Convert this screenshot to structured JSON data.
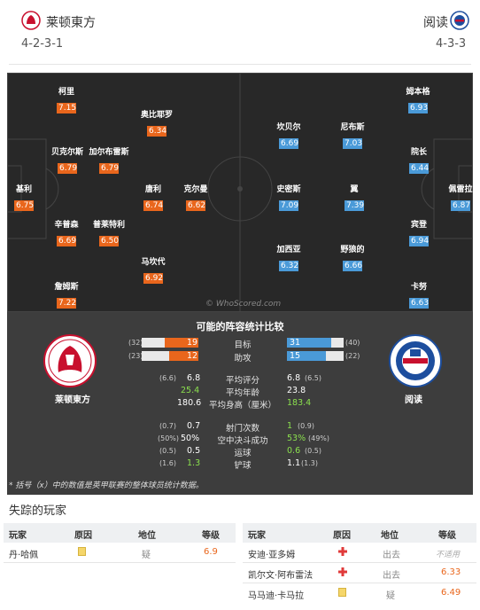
{
  "home": {
    "name": "莱顿東方",
    "formation": "4-2-3-1",
    "crest_label": "莱顿東方"
  },
  "away": {
    "name": "阅读",
    "formation": "4-3-3",
    "crest_label": "阅读"
  },
  "colors": {
    "home": "#e9661c",
    "away": "#4a9ad8",
    "pitch": "#282828",
    "positive": "#8be04e"
  },
  "pitch": {
    "home_players": [
      {
        "name": "柯里",
        "rating": "7.15"
      },
      {
        "name": "奥比耶罗",
        "rating": "6.34"
      },
      {
        "name": "贝克尔斯",
        "rating": "6.79"
      },
      {
        "name": "加尔布雷斯",
        "rating": "6.79"
      },
      {
        "name": "基利",
        "rating": "6.75"
      },
      {
        "name": "唐利",
        "rating": "6.74"
      },
      {
        "name": "克尔曼",
        "rating": "6.62"
      },
      {
        "name": "辛普森",
        "rating": "6.69"
      },
      {
        "name": "普莱特利",
        "rating": "6.50"
      },
      {
        "name": "马坎代",
        "rating": "6.92"
      },
      {
        "name": "詹姆斯",
        "rating": "7.22"
      }
    ],
    "away_players": [
      {
        "name": "姆本格",
        "rating": "6.93"
      },
      {
        "name": "坎贝尔",
        "rating": "6.69"
      },
      {
        "name": "尼布斯",
        "rating": "7.03"
      },
      {
        "name": "院长",
        "rating": "6.44"
      },
      {
        "name": "史密斯",
        "rating": "7.09"
      },
      {
        "name": "翼",
        "rating": "7.39"
      },
      {
        "name": "佩雷拉",
        "rating": "6.87"
      },
      {
        "name": "宾登",
        "rating": "6.94"
      },
      {
        "name": "加西亚",
        "rating": "6.32"
      },
      {
        "name": "野狼的",
        "rating": "6.66"
      },
      {
        "name": "卡努",
        "rating": "6.63"
      }
    ],
    "watermark": "© WhoScored.com"
  },
  "comparison": {
    "title": "可能的阵容统计比较",
    "bars": [
      {
        "label": "目标",
        "home_total": "(32)",
        "home": "19",
        "away": "31",
        "away_total": "(40)",
        "home_frac": 0.59,
        "away_frac": 0.78
      },
      {
        "label": "助攻",
        "home_total": "(23)",
        "home": "12",
        "away": "15",
        "away_total": "(22)",
        "home_frac": 0.52,
        "away_frac": 0.68
      }
    ],
    "rows1": [
      {
        "label": "平均评分",
        "home_small": "(6.6)",
        "home": "6.8",
        "home_green": false,
        "away": "6.8",
        "away_green": false,
        "away_small": "(6.5)"
      },
      {
        "label": "平均年龄",
        "home_small": "",
        "home": "25.4",
        "home_green": true,
        "away": "23.8",
        "away_green": false,
        "away_small": ""
      },
      {
        "label": "平均身高（厘米）",
        "home_small": "",
        "home": "180.6",
        "home_green": false,
        "away": "183.4",
        "away_green": true,
        "away_small": ""
      }
    ],
    "rows2": [
      {
        "label": "射门次数",
        "home_small": "(0.7)",
        "home": "0.7",
        "home_green": false,
        "away": "1",
        "away_green": true,
        "away_small": "(0.9)"
      },
      {
        "label": "空中决斗成功",
        "home_small": "(50%)",
        "home": "50%",
        "home_green": false,
        "away": "53%",
        "away_green": true,
        "away_small": "(49%)"
      },
      {
        "label": "运球",
        "home_small": "(0.5)",
        "home": "0.5",
        "home_green": false,
        "away": "0.6",
        "away_green": true,
        "away_small": "(0.5)"
      },
      {
        "label": "铲球",
        "home_small": "(1.6)",
        "home": "1.3",
        "home_green": true,
        "away": "1.1",
        "away_green": false,
        "away_small": "(1.3)"
      }
    ],
    "footnote": "* 括号（x）中的数值是英甲联赛的整体球员统计数据。"
  },
  "missing": {
    "title": "失踪的玩家",
    "headers": {
      "player": "玩家",
      "reason": "原因",
      "position": "地位",
      "rating": "等级"
    },
    "home": [
      {
        "player": "丹·哈佩",
        "reason_icon": "yellow-card-icon",
        "position": "疑",
        "rating": "6.9"
      }
    ],
    "away": [
      {
        "player": "安迪·亚多姆",
        "reason_icon": "red-cross-icon",
        "position": "出去",
        "rating": "不适用"
      },
      {
        "player": "凯尔文·阿布雷法",
        "reason_icon": "red-cross-icon",
        "position": "出去",
        "rating": "6.33"
      },
      {
        "player": "马马迪·卡马拉",
        "reason_icon": "yellow-card-icon",
        "position": "疑",
        "rating": "6.49"
      }
    ]
  }
}
